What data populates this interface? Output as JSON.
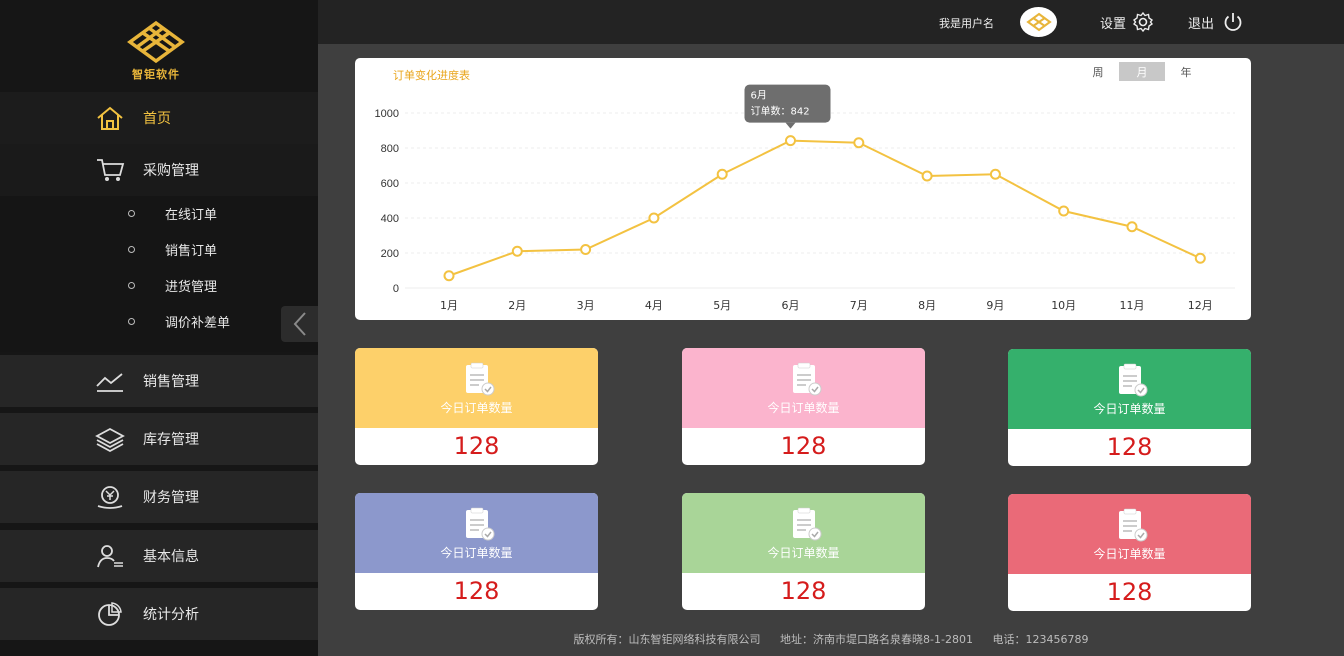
{
  "brand": {
    "name": "智钜软件",
    "color": "#e8b53a"
  },
  "header": {
    "username": "我是用户名",
    "settings_label": "设置",
    "logout_label": "退出"
  },
  "sidebar": {
    "items": [
      {
        "label": "首页",
        "icon": "home-icon",
        "active": true
      },
      {
        "label": "采购管理",
        "icon": "cart-icon",
        "expanded": true
      },
      {
        "label": "销售管理",
        "icon": "trend-icon"
      },
      {
        "label": "库存管理",
        "icon": "layers-icon"
      },
      {
        "label": "财务管理",
        "icon": "finance-icon"
      },
      {
        "label": "基本信息",
        "icon": "user-info-icon"
      },
      {
        "label": "统计分析",
        "icon": "pie-chart-icon"
      }
    ],
    "sub_items": [
      {
        "label": "在线订单"
      },
      {
        "label": "销售订单"
      },
      {
        "label": "进货管理"
      },
      {
        "label": "调价补差单"
      }
    ]
  },
  "chart_card": {
    "title": "订单变化进度表",
    "period_tabs": [
      {
        "label": "周",
        "active": false
      },
      {
        "label": "月",
        "active": true
      },
      {
        "label": "年",
        "active": false
      }
    ]
  },
  "chart_data": {
    "type": "line",
    "categories": [
      "1月",
      "2月",
      "3月",
      "4月",
      "5月",
      "6月",
      "7月",
      "8月",
      "9月",
      "10月",
      "11月",
      "12月"
    ],
    "series": [
      {
        "values": [
          70,
          210,
          220,
          400,
          650,
          842,
          830,
          640,
          650,
          440,
          350,
          170
        ]
      }
    ],
    "ylim": [
      0,
      1000
    ],
    "yticks": [
      0,
      200,
      400,
      600,
      800,
      1000
    ],
    "line_color": "#f3c241",
    "tooltip": {
      "category": "6月",
      "label": "订单数：842"
    }
  },
  "stats": [
    {
      "label": "今日订单数量",
      "value": "128",
      "color": "#fdd06a"
    },
    {
      "label": "今日订单数量",
      "value": "128",
      "color": "#fbb4cd"
    },
    {
      "label": "今日订单数量",
      "value": "128",
      "color": "#35b06c"
    },
    {
      "label": "今日订单数量",
      "value": "128",
      "color": "#8c98cc"
    },
    {
      "label": "今日订单数量",
      "value": "128",
      "color": "#a9d598"
    },
    {
      "label": "今日订单数量",
      "value": "128",
      "color": "#ea6a78"
    }
  ],
  "footer": {
    "copyright": "版权所有：山东智钜网络科技有限公司",
    "address": "地址：济南市堤口路名泉春晓8-1-2801",
    "phone": "电话：123456789"
  }
}
